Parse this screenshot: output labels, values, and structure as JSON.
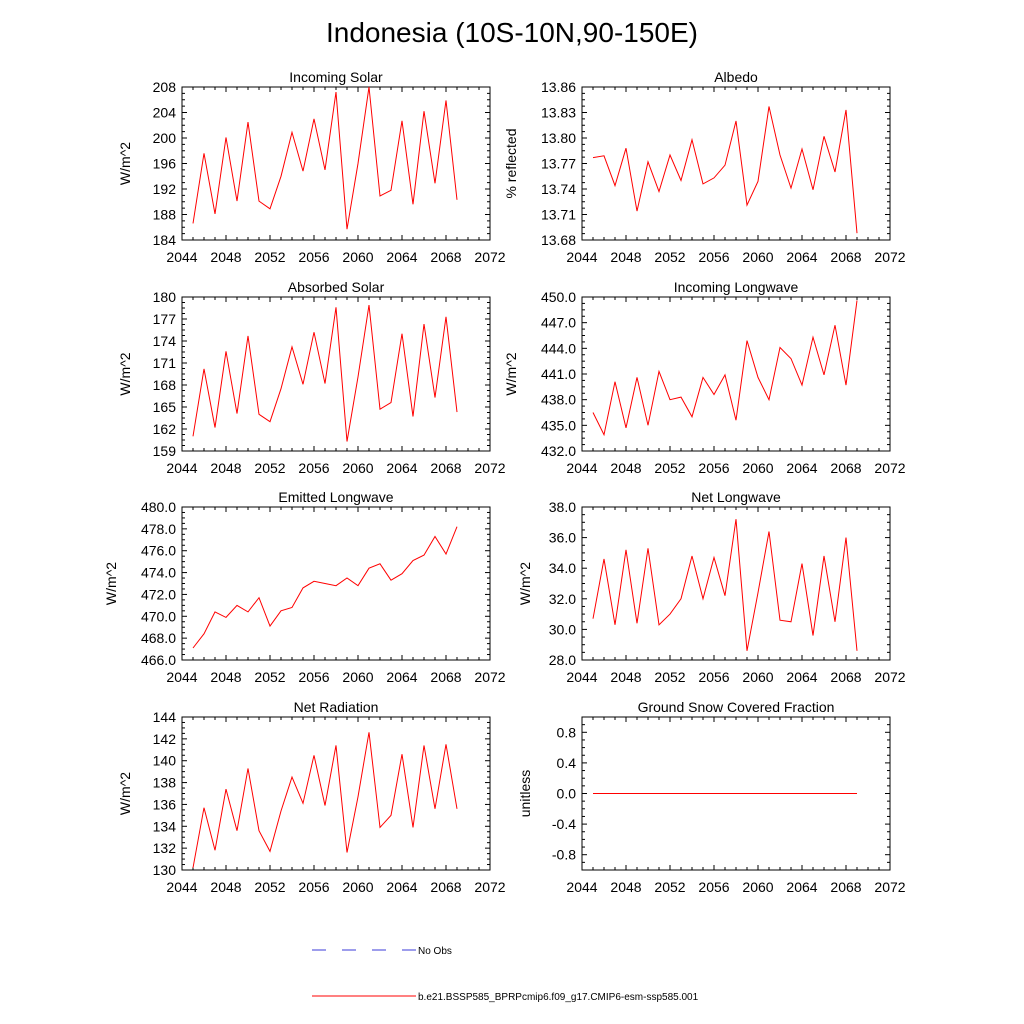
{
  "figure": {
    "title": "Indonesia (10S-10N,90-150E)"
  },
  "legend": {
    "obs_label": "No Obs",
    "model_label": "b.e21.BSSP585_BPRPcmip6.f09_g17.CMIP6-esm-ssp585.001",
    "obs_color": "#3b3bd8",
    "model_color": "#ff0000"
  },
  "colors": {
    "line": "#ff0000",
    "axis": "#000000"
  },
  "chart_data": [
    {
      "type": "line",
      "title": "Incoming Solar",
      "ylabel": "W/m^2",
      "xlim": [
        2044,
        2072
      ],
      "xticks": [
        2044,
        2048,
        2052,
        2056,
        2060,
        2064,
        2068,
        2072
      ],
      "ylim": [
        184,
        208
      ],
      "yticks": [
        "184",
        "188",
        "192",
        "196",
        "200",
        "204",
        "208"
      ],
      "x": [
        2045,
        2046,
        2047,
        2048,
        2049,
        2050,
        2051,
        2052,
        2053,
        2054,
        2055,
        2056,
        2057,
        2058,
        2059,
        2060,
        2061,
        2062,
        2063,
        2064,
        2065,
        2066,
        2067,
        2068,
        2069
      ],
      "series": [
        {
          "values": [
            186.6,
            197.6,
            188.1,
            200.1,
            190.1,
            202.5,
            190.1,
            188.9,
            194.0,
            200.9,
            194.8,
            203.0,
            195.0,
            207.2,
            185.7,
            196.0,
            208.0,
            190.9,
            191.8,
            202.7,
            189.6,
            204.2,
            192.9,
            205.9,
            190.3
          ]
        }
      ]
    },
    {
      "type": "line",
      "title": "Albedo",
      "ylabel": "% reflected",
      "xlim": [
        2044,
        2072
      ],
      "xticks": [
        2044,
        2048,
        2052,
        2056,
        2060,
        2064,
        2068,
        2072
      ],
      "ylim": [
        13.68,
        13.86
      ],
      "yticks": [
        "13.68",
        "13.71",
        "13.74",
        "13.77",
        "13.80",
        "13.83",
        "13.86"
      ],
      "x": [
        2045,
        2046,
        2047,
        2048,
        2049,
        2050,
        2051,
        2052,
        2053,
        2054,
        2055,
        2056,
        2057,
        2058,
        2059,
        2060,
        2061,
        2062,
        2063,
        2064,
        2065,
        2066,
        2067,
        2068,
        2069
      ],
      "series": [
        {
          "values": [
            13.777,
            13.779,
            13.744,
            13.788,
            13.714,
            13.772,
            13.737,
            13.78,
            13.75,
            13.798,
            13.746,
            13.753,
            13.768,
            13.82,
            13.721,
            13.749,
            13.837,
            13.78,
            13.741,
            13.787,
            13.739,
            13.802,
            13.76,
            13.833,
            13.688
          ]
        }
      ]
    },
    {
      "type": "line",
      "title": "Absorbed Solar",
      "ylabel": "W/m^2",
      "xlim": [
        2044,
        2072
      ],
      "xticks": [
        2044,
        2048,
        2052,
        2056,
        2060,
        2064,
        2068,
        2072
      ],
      "ylim": [
        159,
        180
      ],
      "yticks": [
        "159",
        "162",
        "165",
        "168",
        "171",
        "174",
        "177",
        "180"
      ],
      "x": [
        2045,
        2046,
        2047,
        2048,
        2049,
        2050,
        2051,
        2052,
        2053,
        2054,
        2055,
        2056,
        2057,
        2058,
        2059,
        2060,
        2061,
        2062,
        2063,
        2064,
        2065,
        2066,
        2067,
        2068,
        2069
      ],
      "series": [
        {
          "values": [
            161.0,
            170.2,
            162.2,
            172.6,
            164.1,
            174.7,
            164.0,
            163.0,
            167.5,
            173.2,
            168.1,
            175.2,
            168.2,
            178.6,
            160.3,
            169.1,
            178.9,
            164.7,
            165.6,
            175.0,
            163.7,
            176.3,
            166.3,
            177.3,
            164.3
          ]
        }
      ]
    },
    {
      "type": "line",
      "title": "Incoming Longwave",
      "ylabel": "W/m^2",
      "xlim": [
        2044,
        2072
      ],
      "xticks": [
        2044,
        2048,
        2052,
        2056,
        2060,
        2064,
        2068,
        2072
      ],
      "ylim": [
        432.0,
        450.0
      ],
      "yticks": [
        "432.0",
        "435.0",
        "438.0",
        "441.0",
        "444.0",
        "447.0",
        "450.0"
      ],
      "x": [
        2045,
        2046,
        2047,
        2048,
        2049,
        2050,
        2051,
        2052,
        2053,
        2054,
        2055,
        2056,
        2057,
        2058,
        2059,
        2060,
        2061,
        2062,
        2063,
        2064,
        2065,
        2066,
        2067,
        2068,
        2069
      ],
      "series": [
        {
          "values": [
            436.5,
            433.9,
            440.1,
            434.7,
            440.6,
            435.0,
            441.3,
            438.0,
            438.3,
            436.0,
            440.6,
            438.6,
            440.9,
            435.6,
            444.9,
            440.6,
            438.0,
            444.1,
            442.8,
            439.7,
            445.3,
            440.9,
            446.7,
            439.7,
            449.6
          ]
        }
      ]
    },
    {
      "type": "line",
      "title": "Emitted Longwave",
      "ylabel": "W/m^2",
      "xlim": [
        2044,
        2072
      ],
      "xticks": [
        2044,
        2048,
        2052,
        2056,
        2060,
        2064,
        2068,
        2072
      ],
      "ylim": [
        466.0,
        480.0
      ],
      "yticks": [
        "466.0",
        "468.0",
        "470.0",
        "472.0",
        "474.0",
        "476.0",
        "478.0",
        "480.0"
      ],
      "x": [
        2045,
        2046,
        2047,
        2048,
        2049,
        2050,
        2051,
        2052,
        2053,
        2054,
        2055,
        2056,
        2057,
        2058,
        2059,
        2060,
        2061,
        2062,
        2063,
        2064,
        2065,
        2066,
        2067,
        2068,
        2069
      ],
      "series": [
        {
          "values": [
            467.1,
            468.4,
            470.4,
            469.9,
            471.0,
            470.4,
            471.7,
            469.1,
            470.5,
            470.8,
            472.6,
            473.2,
            473.0,
            472.8,
            473.5,
            472.8,
            474.4,
            474.8,
            473.3,
            473.9,
            475.1,
            475.6,
            477.3,
            475.7,
            478.2
          ]
        }
      ]
    },
    {
      "type": "line",
      "title": "Net Longwave",
      "ylabel": "W/m^2",
      "xlim": [
        2044,
        2072
      ],
      "xticks": [
        2044,
        2048,
        2052,
        2056,
        2060,
        2064,
        2068,
        2072
      ],
      "ylim": [
        28.0,
        38.0
      ],
      "yticks": [
        "28.0",
        "30.0",
        "32.0",
        "34.0",
        "36.0",
        "38.0"
      ],
      "x": [
        2045,
        2046,
        2047,
        2048,
        2049,
        2050,
        2051,
        2052,
        2053,
        2054,
        2055,
        2056,
        2057,
        2058,
        2059,
        2060,
        2061,
        2062,
        2063,
        2064,
        2065,
        2066,
        2067,
        2068,
        2069
      ],
      "series": [
        {
          "values": [
            30.7,
            34.6,
            30.3,
            35.2,
            30.4,
            35.3,
            30.3,
            31.0,
            32.0,
            34.8,
            32.0,
            34.7,
            32.2,
            37.2,
            28.6,
            32.4,
            36.4,
            30.6,
            30.5,
            34.3,
            29.6,
            34.8,
            30.5,
            36.0,
            28.6
          ]
        }
      ]
    },
    {
      "type": "line",
      "title": "Net Radiation",
      "ylabel": "W/m^2",
      "xlim": [
        2044,
        2072
      ],
      "xticks": [
        2044,
        2048,
        2052,
        2056,
        2060,
        2064,
        2068,
        2072
      ],
      "ylim": [
        130,
        144
      ],
      "yticks": [
        "130",
        "132",
        "134",
        "136",
        "138",
        "140",
        "142",
        "144"
      ],
      "x": [
        2045,
        2046,
        2047,
        2048,
        2049,
        2050,
        2051,
        2052,
        2053,
        2054,
        2055,
        2056,
        2057,
        2058,
        2059,
        2060,
        2061,
        2062,
        2063,
        2064,
        2065,
        2066,
        2067,
        2068,
        2069
      ],
      "series": [
        {
          "values": [
            130.2,
            135.7,
            131.8,
            137.4,
            133.6,
            139.3,
            133.6,
            131.7,
            135.4,
            138.5,
            136.1,
            140.5,
            135.9,
            141.4,
            131.6,
            136.7,
            142.6,
            133.9,
            135.0,
            140.6,
            133.9,
            141.4,
            135.6,
            141.5,
            135.6
          ]
        }
      ]
    },
    {
      "type": "line",
      "title": "Ground Snow Covered Fraction",
      "ylabel": "unitless",
      "xlim": [
        2044,
        2072
      ],
      "xticks": [
        2044,
        2048,
        2052,
        2056,
        2060,
        2064,
        2068,
        2072
      ],
      "ylim": [
        -1.0,
        1.0
      ],
      "yticks": [
        "-0.8",
        "-0.4",
        "0.0",
        "0.4",
        "0.8"
      ],
      "x": [
        2045,
        2046,
        2047,
        2048,
        2049,
        2050,
        2051,
        2052,
        2053,
        2054,
        2055,
        2056,
        2057,
        2058,
        2059,
        2060,
        2061,
        2062,
        2063,
        2064,
        2065,
        2066,
        2067,
        2068,
        2069
      ],
      "series": [
        {
          "values": [
            0,
            0,
            0,
            0,
            0,
            0,
            0,
            0,
            0,
            0,
            0,
            0,
            0,
            0,
            0,
            0,
            0,
            0,
            0,
            0,
            0,
            0,
            0,
            0,
            0
          ]
        }
      ]
    }
  ]
}
